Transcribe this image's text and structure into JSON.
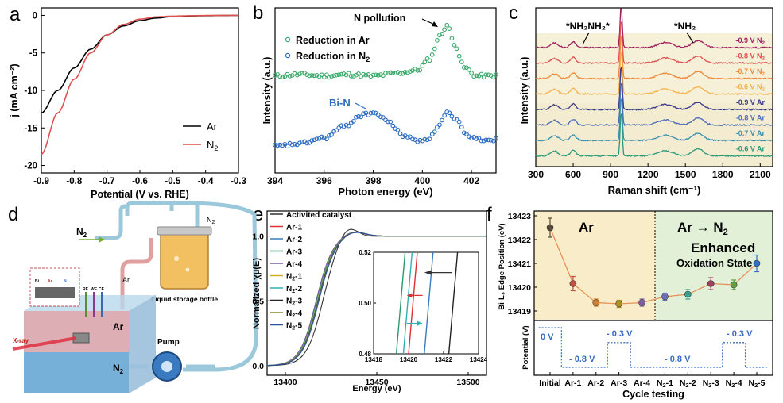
{
  "chart_data": [
    {
      "panel": "a",
      "type": "line",
      "xlabel": "Potential (V vs. RHE)",
      "ylabel": "j (mA cm⁻²)",
      "xlim": [
        -0.9,
        -0.3
      ],
      "ylim": [
        -21,
        1
      ],
      "xticks": [
        "-0.9",
        "-0.8",
        "-0.7",
        "-0.6",
        "-0.5",
        "-0.4",
        "-0.3"
      ],
      "yticks": [
        "0",
        "-5",
        "-10",
        "-15",
        "-20"
      ],
      "series": [
        {
          "name": "Ar",
          "color": "#000000",
          "x": [
            -0.9,
            -0.85,
            -0.8,
            -0.75,
            -0.7,
            -0.65,
            -0.6,
            -0.55,
            -0.5,
            -0.45,
            -0.4,
            -0.35,
            -0.3
          ],
          "y": [
            -13,
            -10,
            -7,
            -4.5,
            -2.6,
            -1.4,
            -0.7,
            -0.35,
            -0.15,
            -0.08,
            -0.04,
            -0.02,
            0
          ]
        },
        {
          "name": "N2",
          "color": "#e05050",
          "x": [
            -0.9,
            -0.85,
            -0.8,
            -0.75,
            -0.7,
            -0.65,
            -0.6,
            -0.55,
            -0.5,
            -0.45,
            -0.4,
            -0.35,
            -0.3
          ],
          "y": [
            -18.5,
            -13,
            -8.5,
            -5,
            -2.6,
            -1.2,
            -0.5,
            -0.2,
            -0.1,
            -0.05,
            -0.02,
            -0.01,
            0
          ]
        }
      ],
      "legend": [
        "Ar",
        "N2"
      ]
    },
    {
      "panel": "b",
      "type": "line",
      "xlabel": "Photon energy (eV)",
      "ylabel": "Intensity (a.u.)",
      "xlim": [
        394,
        403
      ],
      "xticks": [
        "394",
        "396",
        "398",
        "400",
        "402"
      ],
      "annotations": [
        "N pollution",
        "Bi-N"
      ],
      "series": [
        {
          "name": "Reduction in Ar",
          "color": "#3aaa6a",
          "x": [
            394,
            395,
            396,
            397,
            398,
            399,
            399.8,
            400.3,
            400.7,
            401,
            401.3,
            401.7,
            402.2,
            403
          ],
          "y": [
            0.62,
            0.63,
            0.62,
            0.63,
            0.62,
            0.64,
            0.66,
            0.74,
            0.9,
            0.98,
            0.85,
            0.68,
            0.62,
            0.62
          ]
        },
        {
          "name": "Reduction in N2",
          "color": "#2a6cc0",
          "x": [
            394,
            395,
            396,
            396.8,
            397.5,
            398,
            398.6,
            399.2,
            399.8,
            400.3,
            400.7,
            401,
            401.4,
            401.8,
            402.3,
            403
          ],
          "y": [
            0.12,
            0.14,
            0.18,
            0.26,
            0.34,
            0.36,
            0.3,
            0.2,
            0.16,
            0.18,
            0.28,
            0.36,
            0.3,
            0.2,
            0.17,
            0.17
          ]
        }
      ]
    },
    {
      "panel": "c",
      "type": "line",
      "xlabel": "Raman shift (cm⁻¹)",
      "ylabel": "Intensity (a.u.)",
      "xlim": [
        300,
        2200
      ],
      "xticks": [
        "300",
        "600",
        "900",
        "1200",
        "1500",
        "1800",
        "2100"
      ],
      "annotations": [
        "*NH₂NH₂*",
        "*NH₂"
      ],
      "series_labels": [
        "-0.9 V N₂",
        "-0.8 V N₂",
        "-0.7 V N₂",
        "-0.6 V N₂",
        "-0.9 V Ar",
        "-0.8 V Ar",
        "-0.7 V Ar",
        "-0.6 V Ar"
      ],
      "series_colors": [
        "#a0205e",
        "#e05050",
        "#f08a3c",
        "#f5b24a",
        "#3a3a8c",
        "#4a6cb8",
        "#3a90b0",
        "#2a9a7a"
      ],
      "peaks_cm": [
        450,
        600,
        985,
        1340,
        1600
      ]
    },
    {
      "panel": "d",
      "type": "diagram",
      "labels": [
        "N₂",
        "N₂",
        "Ar",
        "Ar",
        "N₂",
        "Liquid storage bottle",
        "Pump",
        "X-ray",
        "RE",
        "WE",
        "CE",
        "Bi",
        "Ar",
        "N"
      ]
    },
    {
      "panel": "e",
      "type": "line",
      "xlabel": "Energy (eV)",
      "ylabel": "Normalized χμ(E)",
      "xlim": [
        13390,
        13510
      ],
      "xticks": [
        "13400",
        "13450",
        "13500"
      ],
      "yticks": [
        "0.0",
        "0.5",
        "1.0"
      ],
      "legend": [
        "Activited catalyst",
        "Ar-1",
        "Ar-2",
        "Ar-3",
        "Ar-4",
        "N₂-1",
        "N₂-2",
        "N₂-3",
        "N₂-4",
        "N₂-5"
      ],
      "legend_colors": [
        "#333333",
        "#e03030",
        "#3a7ac0",
        "#2a9a6a",
        "#7a5aa0",
        "#d0b020",
        "#30b0b0",
        "#222222",
        "#8a8a30",
        "#2a50a0"
      ],
      "inset": {
        "xlim": [
          13418,
          13424
        ],
        "ylim": [
          0.48,
          0.52
        ],
        "xticks": [
          "13418",
          "13420",
          "13422",
          "13424"
        ],
        "yticks": [
          "0.48",
          "0.50",
          "0.52"
        ]
      }
    },
    {
      "panel": "f",
      "type": "scatter",
      "xlabel": "Cycle testing",
      "ylabel": "Bi-L₃ Edge Position (eV)",
      "ylabel2": "Potential (V)",
      "categories": [
        "Initial",
        "Ar-1",
        "Ar-2",
        "Ar-3",
        "Ar-4",
        "N₂-1",
        "N₂-2",
        "N₂-3",
        "N₂-4",
        "N₂-5"
      ],
      "values": [
        13422.5,
        13420.15,
        13419.35,
        13419.3,
        13419.35,
        13419.6,
        13419.7,
        13420.15,
        13420.1,
        13421.0
      ],
      "errors": [
        0.4,
        0.3,
        0.15,
        0.15,
        0.15,
        0.15,
        0.2,
        0.25,
        0.2,
        0.35
      ],
      "point_colors": [
        "#5a4a3a",
        "#c05040",
        "#d08030",
        "#b09020",
        "#7a60a0",
        "#6a70c0",
        "#3aa090",
        "#a04060",
        "#60a040",
        "#3070c0"
      ],
      "yticks": [
        "13419",
        "13420",
        "13421",
        "13422",
        "13423"
      ],
      "ylim": [
        13418.6,
        13423.2
      ],
      "regions": [
        "Ar",
        "Ar → N₂"
      ],
      "annotations": [
        "Enhanced",
        "Oxidation State"
      ],
      "potential_labels": [
        "0 V",
        "- 0.8 V",
        "- 0.3 V",
        "- 0.8 V",
        "- 0.3 V"
      ],
      "potential_steps": [
        0,
        -0.8,
        -0.8,
        -0.3,
        -0.8,
        -0.8,
        -0.8,
        -0.8,
        -0.3,
        -0.8
      ]
    }
  ],
  "panel_letters": [
    "a",
    "b",
    "c",
    "d",
    "e",
    "f"
  ]
}
